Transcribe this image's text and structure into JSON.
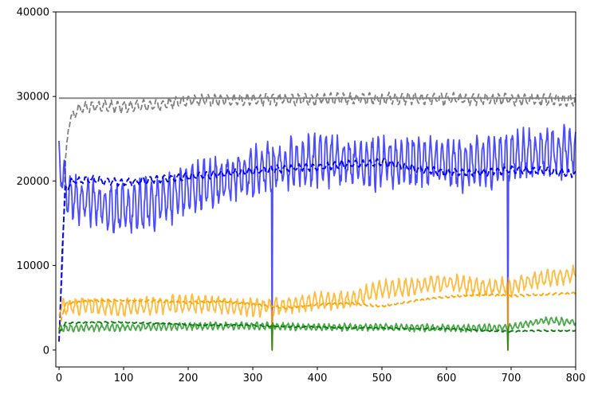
{
  "chart_data": {
    "type": "line",
    "title": "",
    "xlabel": "",
    "ylabel": "",
    "xlim": [
      -5,
      800
    ],
    "ylim": [
      -2000,
      40000
    ],
    "xticks": [
      0,
      100,
      200,
      300,
      400,
      500,
      600,
      700,
      800
    ],
    "yticks": [
      0,
      10000,
      20000,
      30000,
      40000
    ],
    "xtick_labels": [
      "0",
      "100",
      "200",
      "300",
      "400",
      "500",
      "600",
      "700",
      "800"
    ],
    "ytick_labels": [
      "0",
      "10000",
      "20000",
      "30000",
      "40000"
    ],
    "grid": false,
    "series": [
      {
        "color": "#808080",
        "style": "solid",
        "noise": 0,
        "x": [
          0,
          800
        ],
        "values": [
          29800,
          29800
        ]
      },
      {
        "color": "#808080",
        "style": "dashed",
        "noise": 800,
        "period": 10,
        "x": [
          0,
          5,
          10,
          15,
          30,
          60,
          100,
          150,
          200,
          300,
          400,
          500,
          600,
          700,
          800
        ],
        "values": [
          500,
          10000,
          22000,
          27000,
          28500,
          28900,
          28700,
          29000,
          29500,
          29600,
          29700,
          29750,
          29700,
          29650,
          29600
        ]
      },
      {
        "color": "#0000ff",
        "style": "solid",
        "opacity": 0.7,
        "noise": 3500,
        "period": 9,
        "x": [
          0,
          10,
          20,
          50,
          100,
          150,
          200,
          250,
          300,
          350,
          400,
          450,
          500,
          550,
          600,
          650,
          700,
          750,
          800
        ],
        "values": [
          23000,
          19000,
          18000,
          17500,
          16500,
          17500,
          19000,
          20000,
          21000,
          22000,
          22500,
          22500,
          22000,
          22500,
          22000,
          22000,
          23000,
          23500,
          23500
        ],
        "dips": [
          {
            "x": 330,
            "value": 0
          },
          {
            "x": 695,
            "value": 0
          }
        ]
      },
      {
        "color": "#0000ff",
        "style": "dashed",
        "noise": 500,
        "period": 11,
        "x": [
          0,
          5,
          10,
          20,
          50,
          100,
          150,
          200,
          250,
          300,
          350,
          400,
          450,
          500,
          550,
          600,
          650,
          700,
          750,
          800
        ],
        "values": [
          1000,
          12000,
          19000,
          20000,
          20200,
          19800,
          20200,
          20500,
          20800,
          21200,
          21500,
          21700,
          22000,
          22200,
          21500,
          21000,
          21000,
          21300,
          21200,
          20800
        ]
      },
      {
        "color": "#ffa500",
        "style": "solid",
        "opacity": 0.75,
        "noise": 1200,
        "period": 10,
        "x": [
          0,
          50,
          100,
          150,
          200,
          250,
          300,
          350,
          400,
          450,
          500,
          550,
          600,
          650,
          700,
          750,
          800
        ],
        "values": [
          5000,
          5200,
          5000,
          5300,
          5500,
          5300,
          5000,
          5200,
          5800,
          6000,
          7200,
          7500,
          8000,
          7500,
          7500,
          8500,
          9000
        ],
        "dips": [
          {
            "x": 330,
            "value": 0
          },
          {
            "x": 695,
            "value": 0
          }
        ]
      },
      {
        "color": "#ffa500",
        "style": "dashed",
        "noise": 150,
        "period": 9,
        "x": [
          0,
          10,
          50,
          100,
          150,
          200,
          250,
          300,
          350,
          400,
          450,
          500,
          550,
          600,
          650,
          700,
          750,
          800
        ],
        "values": [
          2500,
          5500,
          5800,
          5900,
          5800,
          5600,
          5800,
          5400,
          5000,
          5400,
          5500,
          5200,
          5800,
          6300,
          6600,
          6400,
          6600,
          6700
        ]
      },
      {
        "color": "#008000",
        "style": "solid",
        "opacity": 0.7,
        "noise": 500,
        "period": 8,
        "x": [
          0,
          100,
          200,
          300,
          400,
          500,
          600,
          650,
          700,
          750,
          800
        ],
        "values": [
          2600,
          2700,
          2800,
          2900,
          2700,
          2700,
          2600,
          2600,
          2700,
          3500,
          3300
        ],
        "dips": [
          {
            "x": 330,
            "value": 0
          },
          {
            "x": 695,
            "value": 0
          }
        ]
      },
      {
        "color": "#008000",
        "style": "dashed",
        "noise": 100,
        "period": 10,
        "x": [
          0,
          10,
          100,
          200,
          300,
          350,
          400,
          500,
          600,
          700,
          750,
          800
        ],
        "values": [
          2000,
          3200,
          3300,
          3000,
          2900,
          2800,
          2700,
          2600,
          2500,
          2200,
          2300,
          2300
        ]
      }
    ]
  }
}
